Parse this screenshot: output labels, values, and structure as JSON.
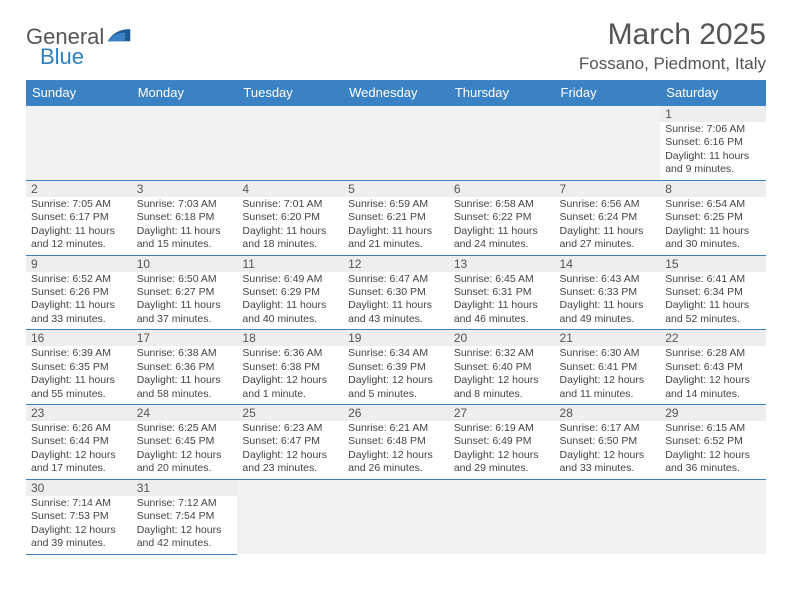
{
  "brand": {
    "general": "General",
    "blue": "Blue"
  },
  "title": {
    "month": "March 2025",
    "location": "Fossano, Piedmont, Italy"
  },
  "colors": {
    "header_bg": "#3a82c4",
    "row_border": "#3a82c4",
    "daynum_bg": "#eeeeee"
  },
  "weekdays": [
    "Sunday",
    "Monday",
    "Tuesday",
    "Wednesday",
    "Thursday",
    "Friday",
    "Saturday"
  ],
  "weeks": [
    [
      null,
      null,
      null,
      null,
      null,
      null,
      {
        "n": "1",
        "sr": "Sunrise: 7:06 AM",
        "ss": "Sunset: 6:16 PM",
        "dl": "Daylight: 11 hours and 9 minutes."
      }
    ],
    [
      {
        "n": "2",
        "sr": "Sunrise: 7:05 AM",
        "ss": "Sunset: 6:17 PM",
        "dl": "Daylight: 11 hours and 12 minutes."
      },
      {
        "n": "3",
        "sr": "Sunrise: 7:03 AM",
        "ss": "Sunset: 6:18 PM",
        "dl": "Daylight: 11 hours and 15 minutes."
      },
      {
        "n": "4",
        "sr": "Sunrise: 7:01 AM",
        "ss": "Sunset: 6:20 PM",
        "dl": "Daylight: 11 hours and 18 minutes."
      },
      {
        "n": "5",
        "sr": "Sunrise: 6:59 AM",
        "ss": "Sunset: 6:21 PM",
        "dl": "Daylight: 11 hours and 21 minutes."
      },
      {
        "n": "6",
        "sr": "Sunrise: 6:58 AM",
        "ss": "Sunset: 6:22 PM",
        "dl": "Daylight: 11 hours and 24 minutes."
      },
      {
        "n": "7",
        "sr": "Sunrise: 6:56 AM",
        "ss": "Sunset: 6:24 PM",
        "dl": "Daylight: 11 hours and 27 minutes."
      },
      {
        "n": "8",
        "sr": "Sunrise: 6:54 AM",
        "ss": "Sunset: 6:25 PM",
        "dl": "Daylight: 11 hours and 30 minutes."
      }
    ],
    [
      {
        "n": "9",
        "sr": "Sunrise: 6:52 AM",
        "ss": "Sunset: 6:26 PM",
        "dl": "Daylight: 11 hours and 33 minutes."
      },
      {
        "n": "10",
        "sr": "Sunrise: 6:50 AM",
        "ss": "Sunset: 6:27 PM",
        "dl": "Daylight: 11 hours and 37 minutes."
      },
      {
        "n": "11",
        "sr": "Sunrise: 6:49 AM",
        "ss": "Sunset: 6:29 PM",
        "dl": "Daylight: 11 hours and 40 minutes."
      },
      {
        "n": "12",
        "sr": "Sunrise: 6:47 AM",
        "ss": "Sunset: 6:30 PM",
        "dl": "Daylight: 11 hours and 43 minutes."
      },
      {
        "n": "13",
        "sr": "Sunrise: 6:45 AM",
        "ss": "Sunset: 6:31 PM",
        "dl": "Daylight: 11 hours and 46 minutes."
      },
      {
        "n": "14",
        "sr": "Sunrise: 6:43 AM",
        "ss": "Sunset: 6:33 PM",
        "dl": "Daylight: 11 hours and 49 minutes."
      },
      {
        "n": "15",
        "sr": "Sunrise: 6:41 AM",
        "ss": "Sunset: 6:34 PM",
        "dl": "Daylight: 11 hours and 52 minutes."
      }
    ],
    [
      {
        "n": "16",
        "sr": "Sunrise: 6:39 AM",
        "ss": "Sunset: 6:35 PM",
        "dl": "Daylight: 11 hours and 55 minutes."
      },
      {
        "n": "17",
        "sr": "Sunrise: 6:38 AM",
        "ss": "Sunset: 6:36 PM",
        "dl": "Daylight: 11 hours and 58 minutes."
      },
      {
        "n": "18",
        "sr": "Sunrise: 6:36 AM",
        "ss": "Sunset: 6:38 PM",
        "dl": "Daylight: 12 hours and 1 minute."
      },
      {
        "n": "19",
        "sr": "Sunrise: 6:34 AM",
        "ss": "Sunset: 6:39 PM",
        "dl": "Daylight: 12 hours and 5 minutes."
      },
      {
        "n": "20",
        "sr": "Sunrise: 6:32 AM",
        "ss": "Sunset: 6:40 PM",
        "dl": "Daylight: 12 hours and 8 minutes."
      },
      {
        "n": "21",
        "sr": "Sunrise: 6:30 AM",
        "ss": "Sunset: 6:41 PM",
        "dl": "Daylight: 12 hours and 11 minutes."
      },
      {
        "n": "22",
        "sr": "Sunrise: 6:28 AM",
        "ss": "Sunset: 6:43 PM",
        "dl": "Daylight: 12 hours and 14 minutes."
      }
    ],
    [
      {
        "n": "23",
        "sr": "Sunrise: 6:26 AM",
        "ss": "Sunset: 6:44 PM",
        "dl": "Daylight: 12 hours and 17 minutes."
      },
      {
        "n": "24",
        "sr": "Sunrise: 6:25 AM",
        "ss": "Sunset: 6:45 PM",
        "dl": "Daylight: 12 hours and 20 minutes."
      },
      {
        "n": "25",
        "sr": "Sunrise: 6:23 AM",
        "ss": "Sunset: 6:47 PM",
        "dl": "Daylight: 12 hours and 23 minutes."
      },
      {
        "n": "26",
        "sr": "Sunrise: 6:21 AM",
        "ss": "Sunset: 6:48 PM",
        "dl": "Daylight: 12 hours and 26 minutes."
      },
      {
        "n": "27",
        "sr": "Sunrise: 6:19 AM",
        "ss": "Sunset: 6:49 PM",
        "dl": "Daylight: 12 hours and 29 minutes."
      },
      {
        "n": "28",
        "sr": "Sunrise: 6:17 AM",
        "ss": "Sunset: 6:50 PM",
        "dl": "Daylight: 12 hours and 33 minutes."
      },
      {
        "n": "29",
        "sr": "Sunrise: 6:15 AM",
        "ss": "Sunset: 6:52 PM",
        "dl": "Daylight: 12 hours and 36 minutes."
      }
    ],
    [
      {
        "n": "30",
        "sr": "Sunrise: 7:14 AM",
        "ss": "Sunset: 7:53 PM",
        "dl": "Daylight: 12 hours and 39 minutes."
      },
      {
        "n": "31",
        "sr": "Sunrise: 7:12 AM",
        "ss": "Sunset: 7:54 PM",
        "dl": "Daylight: 12 hours and 42 minutes."
      },
      null,
      null,
      null,
      null,
      null
    ]
  ]
}
